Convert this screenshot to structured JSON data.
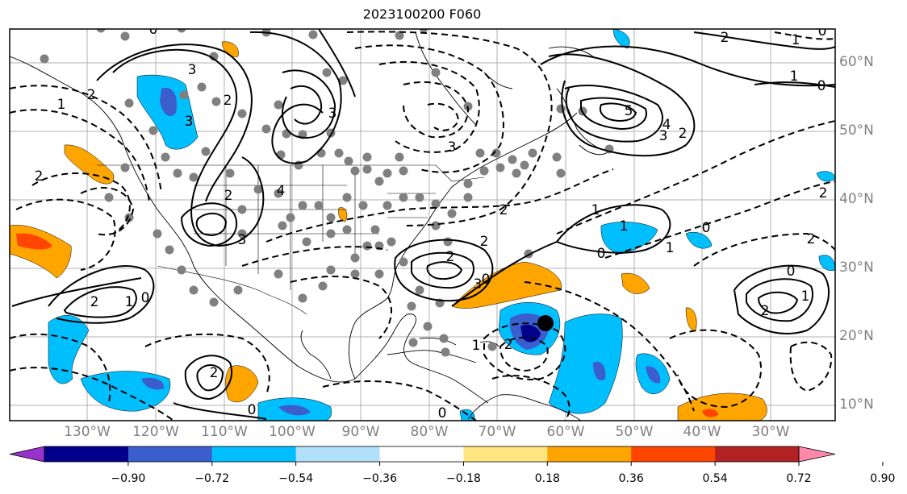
{
  "title": "2023100200 F060",
  "lat_labels": [
    "60°N",
    "50°N",
    "40°N",
    "30°N",
    "20°N",
    "10°N"
  ],
  "lon_labels": [
    "130°W",
    "120°W",
    "110°W",
    "100°W",
    "90°W",
    "80°W",
    "70°W",
    "60°W",
    "50°W",
    "40°W",
    "30°W"
  ],
  "colorbar": {
    "ticks": [
      "−0.90",
      "−0.72",
      "−0.54",
      "−0.36",
      "−0.18",
      "0.18",
      "0.36",
      "0.54",
      "0.72",
      "0.90"
    ],
    "colors": [
      "#9932cc",
      "#00008b",
      "#3a5fcd",
      "#00bfff",
      "#b0e0fa",
      "#ffffff",
      "#ffe680",
      "#ffa500",
      "#ff4500",
      "#b22222",
      "#ff88aa"
    ]
  },
  "contour_labels": [
    "0",
    "3",
    "2",
    "3",
    "2",
    "3",
    "2",
    "5",
    "4",
    "3",
    "2",
    "1",
    "0",
    "2",
    "0",
    "1",
    "0",
    "2",
    "2",
    "3",
    "3",
    "2",
    "1",
    "0",
    "1",
    "2",
    "0",
    "0",
    "2",
    "1",
    "0",
    "1",
    "2",
    "0",
    "2",
    "2",
    "1",
    "0",
    "1",
    "2",
    "2",
    "1",
    "3",
    "4"
  ]
}
